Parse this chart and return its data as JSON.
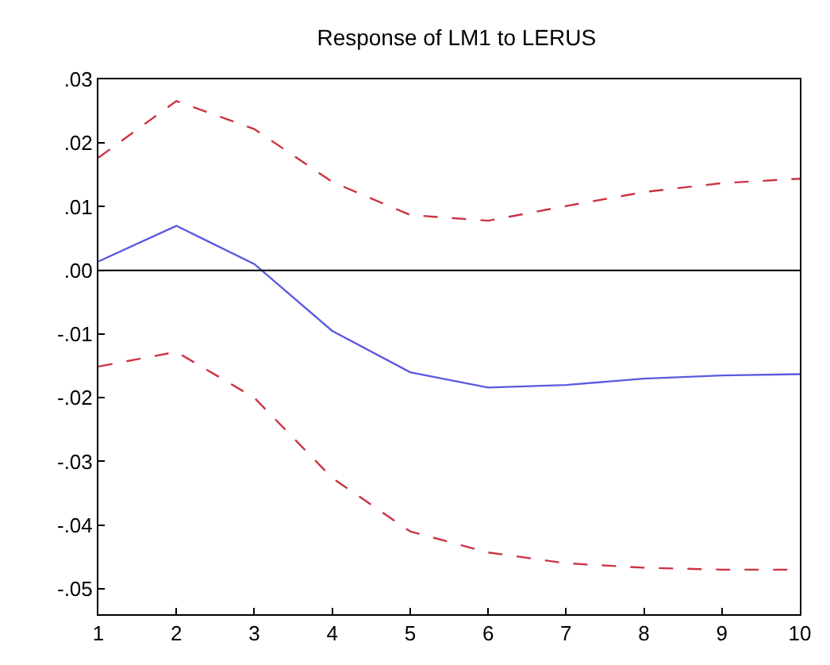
{
  "chart_data": {
    "type": "line",
    "title": "Response of LM1 to LERUS",
    "x": [
      1,
      2,
      3,
      4,
      5,
      6,
      7,
      8,
      9,
      10
    ],
    "series": [
      {
        "color": "#5a5ae0",
        "line_style": "solid",
        "values": [
          0.0014,
          0.007,
          0.001,
          -0.0095,
          -0.016,
          -0.0184,
          -0.018,
          -0.017,
          -0.0165,
          -0.0163
        ]
      },
      {
        "color": "#cc3344",
        "line_style": "dashed",
        "values": [
          0.0177,
          0.0266,
          0.0222,
          0.0139,
          0.0087,
          0.0078,
          0.0101,
          0.0123,
          0.0137,
          0.0144
        ]
      },
      {
        "color": "#cc3344",
        "line_style": "dashed",
        "values": [
          -0.0151,
          -0.0128,
          -0.02,
          -0.0326,
          -0.041,
          -0.0443,
          -0.046,
          -0.0467,
          -0.047,
          -0.047
        ]
      }
    ],
    "xlim": [
      1,
      10
    ],
    "xticks": [
      1,
      2,
      3,
      4,
      5,
      6,
      7,
      8,
      9,
      10
    ],
    "ylim": [
      -0.054,
      0.03
    ],
    "yticks": [
      {
        "value": 0.03,
        "label": ".03"
      },
      {
        "value": 0.02,
        "label": ".02"
      },
      {
        "value": 0.01,
        "label": ".01"
      },
      {
        "value": 0,
        "label": ".00"
      },
      {
        "value": -0.01,
        "label": "-.01"
      },
      {
        "value": -0.02,
        "label": "-.02"
      },
      {
        "value": -0.03,
        "label": "-.03"
      },
      {
        "value": -0.04,
        "label": "-.04"
      },
      {
        "value": -0.05,
        "label": "-.05"
      }
    ],
    "ref_lines": [
      {
        "axis": "y",
        "value": 0,
        "color": "#000000",
        "line_style": "solid"
      }
    ],
    "legend": false,
    "marker": "none"
  }
}
